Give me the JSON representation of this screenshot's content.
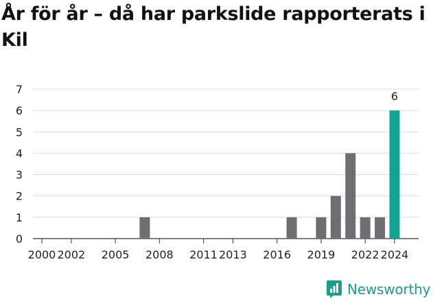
{
  "title": "År för år – då har parkslide rapporterats i Kil",
  "brand": {
    "name": "Newsworthy",
    "color": "#1a9c8d"
  },
  "chart_data": {
    "type": "bar",
    "x": [
      2000,
      2001,
      2002,
      2003,
      2004,
      2005,
      2006,
      2007,
      2008,
      2009,
      2010,
      2011,
      2012,
      2013,
      2014,
      2015,
      2016,
      2017,
      2018,
      2019,
      2020,
      2021,
      2022,
      2023,
      2024
    ],
    "values": [
      0,
      0,
      0,
      0,
      0,
      0,
      0,
      1,
      0,
      0,
      0,
      0,
      0,
      0,
      0,
      0,
      0,
      1,
      0,
      1,
      2,
      4,
      1,
      1,
      6
    ],
    "x_tick_labels": [
      {
        "year": 2000,
        "label": "2000"
      },
      {
        "year": 2002,
        "label": "2002"
      },
      {
        "year": 2005,
        "label": "2005"
      },
      {
        "year": 2008,
        "label": "2008"
      },
      {
        "year": 2011,
        "label": "2011"
      },
      {
        "year": 2013,
        "label": "2013"
      },
      {
        "year": 2016,
        "label": "2016"
      },
      {
        "year": 2019,
        "label": "2019"
      },
      {
        "year": 2022,
        "label": "2022"
      },
      {
        "year": 2024,
        "label": "2024"
      }
    ],
    "y_ticks": [
      0,
      1,
      2,
      3,
      4,
      5,
      6,
      7
    ],
    "ylim": [
      0,
      7
    ],
    "grid": true,
    "bar_color": "#6e6e73",
    "highlight": {
      "year": 2024,
      "color": "#12a594",
      "label": "6"
    }
  }
}
